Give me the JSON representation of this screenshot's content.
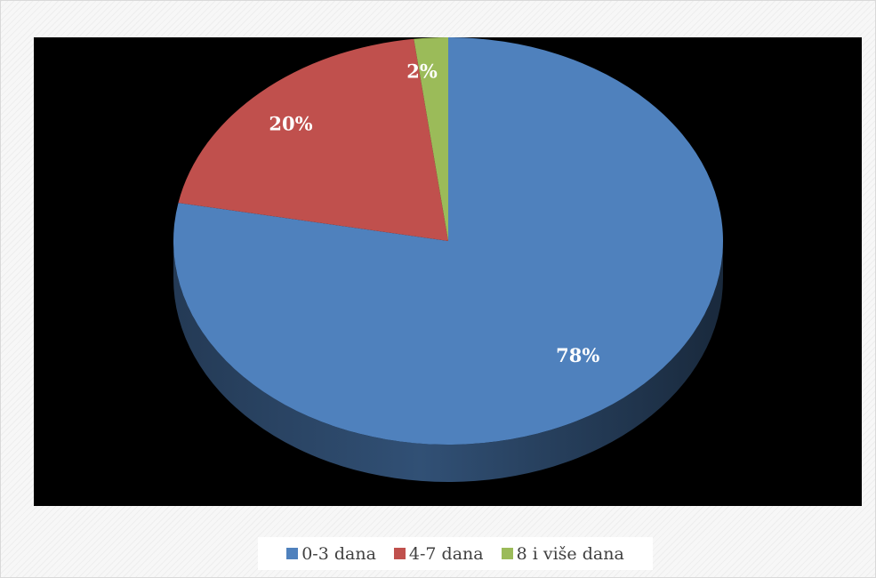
{
  "chart_data": {
    "type": "pie",
    "title": "",
    "categories": [
      "0-3 dana",
      "4-7 dana",
      "8 i više dana"
    ],
    "values": [
      78,
      20,
      2
    ],
    "data_labels": [
      "78%",
      "20%",
      "2%"
    ],
    "colors": [
      "#4f81bd",
      "#c0504d",
      "#9bbb59"
    ],
    "style": "3d",
    "background": "#000000",
    "legend_position": "bottom"
  }
}
